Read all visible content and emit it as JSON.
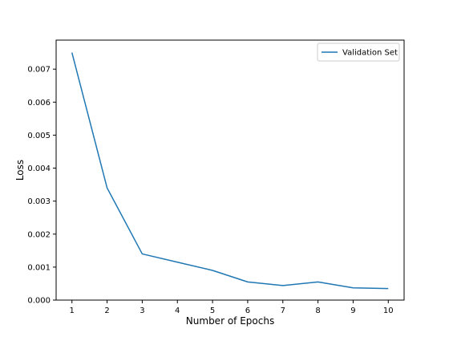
{
  "chart_data": {
    "type": "line",
    "title": "",
    "xlabel": "Number of Epochs",
    "ylabel": "Loss",
    "x": [
      1,
      2,
      3,
      4,
      5,
      6,
      7,
      8,
      9,
      10
    ],
    "series": [
      {
        "name": "Validation Set",
        "color": "#1f77b4",
        "values": [
          0.0075,
          0.0034,
          0.0014,
          0.00115,
          0.0009,
          0.00055,
          0.00044,
          0.00055,
          0.00037,
          0.00035
        ]
      }
    ],
    "xticks": [
      1,
      2,
      3,
      4,
      5,
      6,
      7,
      8,
      9,
      10
    ],
    "xtick_labels": [
      "1",
      "2",
      "3",
      "4",
      "5",
      "6",
      "7",
      "8",
      "9",
      "10"
    ],
    "yticks": [
      0,
      0.001,
      0.002,
      0.003,
      0.004,
      0.005,
      0.006,
      0.007
    ],
    "ytick_labels": [
      "0.000",
      "0.001",
      "0.002",
      "0.003",
      "0.004",
      "0.005",
      "0.006",
      "0.007"
    ],
    "xlim": [
      0.55,
      10.45
    ],
    "ylim": [
      0,
      0.00788
    ],
    "grid": false,
    "legend_position": "top-right"
  }
}
